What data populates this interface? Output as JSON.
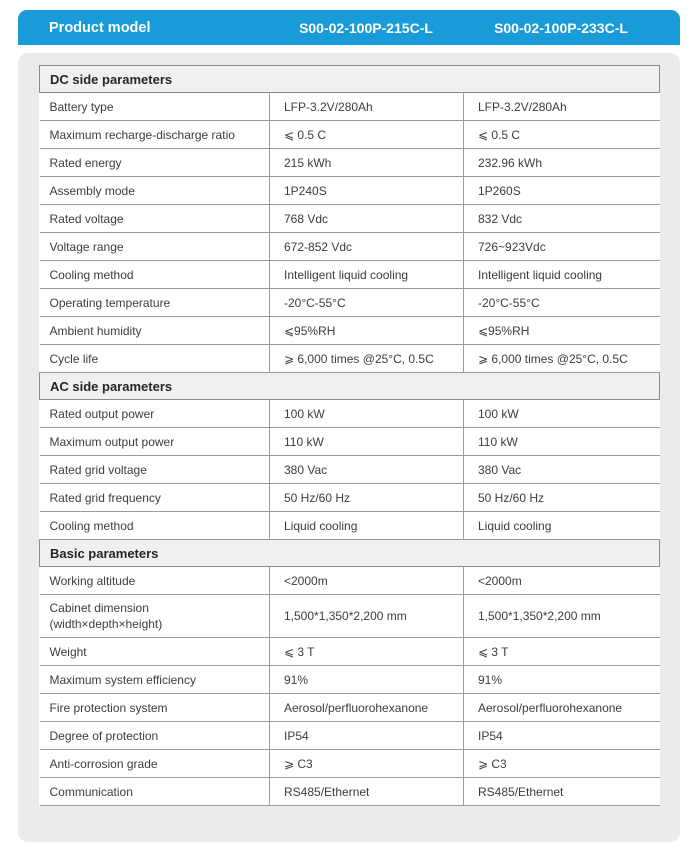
{
  "colors": {
    "accent_blue": "#189BD8",
    "card_gray": "#EAEBED",
    "section_gray": "#F0F0F1",
    "border_gray": "#9C9C9C",
    "text_dark": "#3D3D3D"
  },
  "header": {
    "product_label": "Product model",
    "model_1": "S00-02-100P-215C-L",
    "model_2": "S00-02-100P-233C-L"
  },
  "sections": [
    {
      "title": "DC side parameters",
      "rows": [
        {
          "label": "Battery type",
          "v1": "LFP-3.2V/280Ah",
          "v2": "LFP-3.2V/280Ah"
        },
        {
          "label": "Maximum recharge-discharge ratio",
          "v1": "⩽ 0.5 C",
          "v2": "⩽ 0.5 C"
        },
        {
          "label": "Rated energy",
          "v1": "215 kWh",
          "v2": "232.96 kWh"
        },
        {
          "label": "Assembly mode",
          "v1": "1P240S",
          "v2": "1P260S"
        },
        {
          "label": "Rated voltage",
          "v1": "768 Vdc",
          "v2": "832 Vdc"
        },
        {
          "label": "Voltage range",
          "v1": "672-852 Vdc",
          "v2": "726~923Vdc"
        },
        {
          "label": "Cooling method",
          "v1": "Intelligent liquid cooling",
          "v2": "Intelligent liquid cooling"
        },
        {
          "label": "Operating temperature",
          "v1": "-20°C-55°C",
          "v2": "-20°C-55°C"
        },
        {
          "label": "Ambient humidity",
          "v1": "⩽95%RH",
          "v2": "⩽95%RH"
        },
        {
          "label": "Cycle life",
          "v1": "⩾ 6,000 times @25°C, 0.5C",
          "v2": "⩾ 6,000 times @25°C, 0.5C"
        }
      ]
    },
    {
      "title": "AC side parameters",
      "rows": [
        {
          "label": "Rated output power",
          "v1": "100 kW",
          "v2": "100 kW"
        },
        {
          "label": "Maximum output power",
          "v1": "110 kW",
          "v2": "110 kW"
        },
        {
          "label": "Rated grid voltage",
          "v1": "380 Vac",
          "v2": "380 Vac"
        },
        {
          "label": "Rated grid frequency",
          "v1": "50 Hz/60 Hz",
          "v2": "50 Hz/60 Hz"
        },
        {
          "label": "Cooling method",
          "v1": "Liquid cooling",
          "v2": "Liquid cooling"
        }
      ]
    },
    {
      "title": "Basic parameters",
      "rows": [
        {
          "label": "Working altitude",
          "v1": "<2000m",
          "v2": "<2000m"
        },
        {
          "label": "Cabinet dimension\n(width×depth×height)",
          "v1": "1,500*1,350*2,200 mm",
          "v2": "1,500*1,350*2,200 mm"
        },
        {
          "label": "Weight",
          "v1": "⩽ 3 T",
          "v2": "⩽ 3 T"
        },
        {
          "label": "Maximum system efficiency",
          "v1": "91%",
          "v2": "91%"
        },
        {
          "label": "Fire protection system",
          "v1": "Aerosol/perfluorohexanone",
          "v2": "Aerosol/perfluorohexanone"
        },
        {
          "label": "Degree of protection",
          "v1": "IP54",
          "v2": "IP54"
        },
        {
          "label": "Anti-corrosion grade",
          "v1": "⩾ C3",
          "v2": "⩾ C3"
        },
        {
          "label": "Communication",
          "v1": "RS485/Ethernet",
          "v2": "RS485/Ethernet"
        }
      ]
    }
  ]
}
